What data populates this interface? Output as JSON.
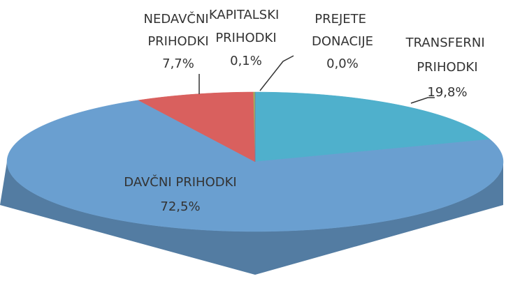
{
  "chart_data": {
    "type": "pie",
    "categories": [
      "TRANSFERNI PRIHODKI",
      "DAVČNI PRIHODKI",
      "NEDAVČNI PRIHODKI",
      "KAPITALSKI PRIHODKI",
      "PREJETE DONACIJE"
    ],
    "values": [
      19.8,
      72.5,
      7.7,
      0.1,
      0.0
    ],
    "value_labels": [
      "19,8%",
      "72,5%",
      "7,7%",
      "0,1%",
      "0,0%"
    ],
    "colors": [
      "#4fb0cc",
      "#6a9fd0",
      "#d9605e",
      "#9bbb59",
      "#8064a2"
    ]
  }
}
